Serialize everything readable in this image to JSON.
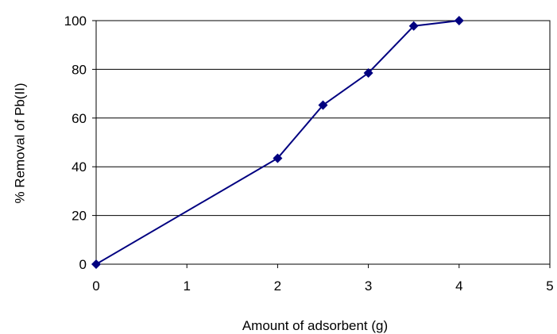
{
  "chart_data": {
    "type": "line",
    "title": "",
    "xlabel": "Amount of adsorbent (g)",
    "ylabel": "% Removal of Pb(II)",
    "xlim": [
      0,
      5
    ],
    "ylim": [
      0,
      100
    ],
    "x_ticks": [
      "0",
      "1",
      "2",
      "3",
      "4",
      "5"
    ],
    "y_ticks": [
      "0",
      "20",
      "40",
      "60",
      "80",
      "100"
    ],
    "grid": "horizontal",
    "legend": "none",
    "series": [
      {
        "color": "#000080",
        "marker": "diamond",
        "x": [
          0,
          2,
          2.5,
          3,
          3.5,
          4
        ],
        "y": [
          0,
          43.5,
          65.3,
          78.5,
          97.8,
          100
        ]
      }
    ]
  }
}
